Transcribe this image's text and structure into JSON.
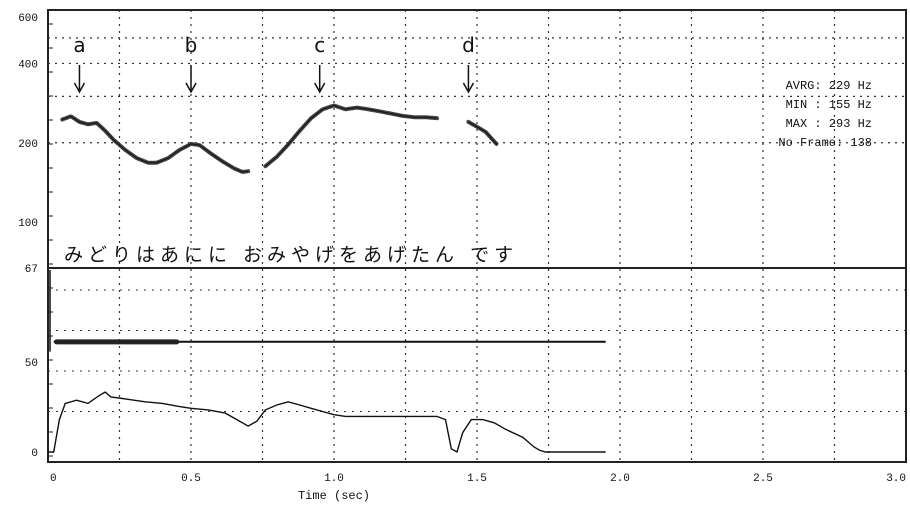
{
  "chart_data": [
    {
      "type": "line",
      "ylabel_ticks": [
        "600",
        "400",
        "200",
        "100",
        "67"
      ],
      "ylim": [
        67,
        600
      ],
      "y_scale": "log",
      "xlim": [
        0,
        3.0
      ],
      "grid": true,
      "arrows": [
        {
          "label": "a",
          "x": 0.11
        },
        {
          "label": "b",
          "x": 0.5
        },
        {
          "label": "c",
          "x": 0.95
        },
        {
          "label": "d",
          "x": 1.47
        }
      ],
      "stats": [
        "AVRG: 229 Hz",
        "MIN : 155 Hz",
        "MAX : 293 Hz",
        "No Frame: 138"
      ],
      "transcript": "みどりはあにに おみやげをあげたん です",
      "series": [
        {
          "segments": [
            [
              [
                0.05,
                245
              ],
              [
                0.08,
                252
              ],
              [
                0.11,
                240
              ],
              [
                0.14,
                235
              ],
              [
                0.17,
                238
              ],
              [
                0.2,
                222
              ],
              [
                0.23,
                205
              ],
              [
                0.27,
                188
              ],
              [
                0.31,
                175
              ],
              [
                0.35,
                168
              ],
              [
                0.38,
                168
              ],
              [
                0.42,
                175
              ],
              [
                0.46,
                188
              ],
              [
                0.5,
                198
              ],
              [
                0.53,
                196
              ],
              [
                0.57,
                182
              ],
              [
                0.61,
                170
              ],
              [
                0.65,
                160
              ],
              [
                0.68,
                155
              ],
              [
                0.7,
                156
              ]
            ],
            [
              [
                0.76,
                163
              ],
              [
                0.8,
                177
              ],
              [
                0.84,
                197
              ],
              [
                0.88,
                222
              ],
              [
                0.92,
                248
              ],
              [
                0.96,
                268
              ],
              [
                1.0,
                277
              ],
              [
                1.04,
                268
              ],
              [
                1.08,
                272
              ],
              [
                1.12,
                268
              ],
              [
                1.16,
                263
              ],
              [
                1.2,
                258
              ],
              [
                1.24,
                253
              ],
              [
                1.28,
                250
              ],
              [
                1.32,
                250
              ],
              [
                1.36,
                248
              ]
            ],
            [
              [
                1.47,
                240
              ],
              [
                1.5,
                230
              ],
              [
                1.53,
                220
              ],
              [
                1.57,
                197
              ]
            ]
          ]
        }
      ]
    },
    {
      "type": "line",
      "ylabel_ticks": [
        "50",
        "0"
      ],
      "ylim": [
        0,
        100
      ],
      "xlim": [
        0,
        3.0
      ],
      "xticks": [
        "0",
        "0.5",
        "1.0",
        "1.5",
        "2.0",
        "2.5",
        "3.0"
      ],
      "xlabel": "Time (sec)",
      "grid": true,
      "series": [
        {
          "points": [
            [
              0.02,
              68
            ],
            [
              1.95,
              68
            ]
          ]
        },
        {
          "points": [
            [
              0.0,
              0
            ],
            [
              0.02,
              0
            ],
            [
              0.04,
              20
            ],
            [
              0.06,
              30
            ],
            [
              0.1,
              32
            ],
            [
              0.14,
              30
            ],
            [
              0.18,
              35
            ],
            [
              0.2,
              37
            ],
            [
              0.22,
              34
            ],
            [
              0.26,
              33
            ],
            [
              0.3,
              32
            ],
            [
              0.34,
              31
            ],
            [
              0.4,
              30
            ],
            [
              0.46,
              28
            ],
            [
              0.5,
              27
            ],
            [
              0.56,
              26
            ],
            [
              0.62,
              24
            ],
            [
              0.66,
              20
            ],
            [
              0.7,
              16
            ],
            [
              0.73,
              19
            ],
            [
              0.76,
              26
            ],
            [
              0.8,
              29
            ],
            [
              0.84,
              31
            ],
            [
              0.88,
              29
            ],
            [
              0.92,
              27
            ],
            [
              0.96,
              25
            ],
            [
              1.0,
              23
            ],
            [
              1.04,
              22
            ],
            [
              1.1,
              22
            ],
            [
              1.2,
              22
            ],
            [
              1.3,
              22
            ],
            [
              1.36,
              22
            ],
            [
              1.39,
              20
            ],
            [
              1.41,
              2
            ],
            [
              1.43,
              0
            ],
            [
              1.45,
              12
            ],
            [
              1.48,
              20
            ],
            [
              1.52,
              20
            ],
            [
              1.56,
              18
            ],
            [
              1.6,
              14
            ],
            [
              1.66,
              9
            ],
            [
              1.7,
              3
            ],
            [
              1.72,
              1
            ],
            [
              1.74,
              0
            ],
            [
              1.95,
              0
            ]
          ]
        }
      ]
    }
  ]
}
